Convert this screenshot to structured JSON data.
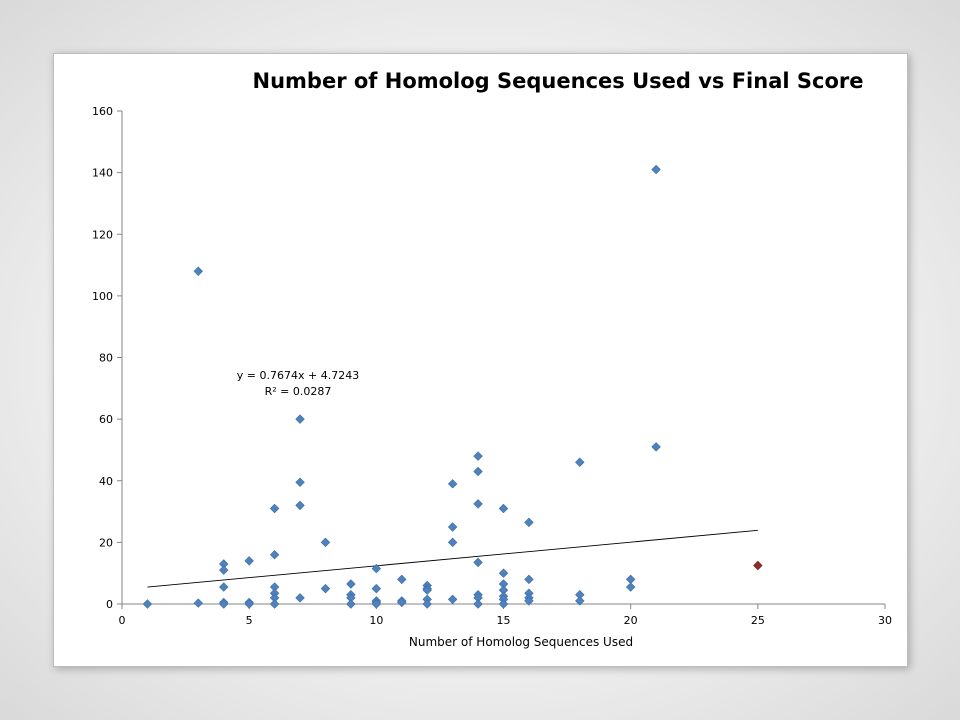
{
  "colors": {
    "point": "#4f81bd",
    "highlight_point": "#8b2b2b",
    "axis": "#868686",
    "trendline": "#000000"
  },
  "chart_data": {
    "type": "scatter",
    "title": "Number of Homolog Sequences Used vs Final Score",
    "xlabel": "Number of Homolog Sequences Used",
    "ylabel": "",
    "xlim": [
      0,
      30
    ],
    "ylim": [
      0,
      160
    ],
    "xticks": [
      "0",
      "5",
      "10",
      "15",
      "20",
      "25",
      "30"
    ],
    "yticks": [
      "0",
      "20",
      "40",
      "60",
      "80",
      "100",
      "120",
      "140",
      "160"
    ],
    "grid": false,
    "legend": "none",
    "trendline": {
      "equation": "y = 0.7674x + 4.7243",
      "r_squared": "R² = 0.0287",
      "slope": 0.7674,
      "intercept": 4.7243,
      "x_range": [
        1,
        25
      ]
    },
    "series": [
      {
        "points": [
          [
            1,
            0
          ],
          [
            3,
            108
          ],
          [
            3,
            0.3
          ],
          [
            4,
            13
          ],
          [
            4,
            11
          ],
          [
            4,
            5.5
          ],
          [
            4,
            0.5
          ],
          [
            4,
            0
          ],
          [
            5,
            14
          ],
          [
            5,
            0.5
          ],
          [
            5,
            0
          ],
          [
            6,
            31
          ],
          [
            6,
            16
          ],
          [
            6,
            5.5
          ],
          [
            6,
            3.5
          ],
          [
            6,
            2
          ],
          [
            6,
            0
          ],
          [
            7,
            60
          ],
          [
            7,
            39.5
          ],
          [
            7,
            32
          ],
          [
            7,
            2
          ],
          [
            8,
            20
          ],
          [
            8,
            5
          ],
          [
            9,
            6.5
          ],
          [
            9,
            3
          ],
          [
            9,
            2
          ],
          [
            9,
            0
          ],
          [
            10,
            11.5
          ],
          [
            10,
            5
          ],
          [
            10,
            1
          ],
          [
            10,
            0.5
          ],
          [
            10,
            0
          ],
          [
            11,
            8
          ],
          [
            11,
            1
          ],
          [
            11,
            0.5
          ],
          [
            12,
            6
          ],
          [
            12,
            5
          ],
          [
            12,
            4.5
          ],
          [
            12,
            1.5
          ],
          [
            12,
            0
          ],
          [
            13,
            39
          ],
          [
            13,
            25
          ],
          [
            13,
            20
          ],
          [
            13,
            1.5
          ],
          [
            14,
            48
          ],
          [
            14,
            43
          ],
          [
            14,
            32.5
          ],
          [
            14,
            13.5
          ],
          [
            14,
            3
          ],
          [
            14,
            2
          ],
          [
            14,
            0
          ],
          [
            15,
            31
          ],
          [
            15,
            10
          ],
          [
            15,
            6.5
          ],
          [
            15,
            4.5
          ],
          [
            15,
            2.5
          ],
          [
            15,
            1.5
          ],
          [
            15,
            0
          ],
          [
            16,
            26.5
          ],
          [
            16,
            8
          ],
          [
            16,
            3.5
          ],
          [
            16,
            2
          ],
          [
            16,
            1
          ],
          [
            18,
            46
          ],
          [
            18,
            3
          ],
          [
            18,
            1
          ],
          [
            20,
            8
          ],
          [
            20,
            5.5
          ],
          [
            21,
            141
          ],
          [
            21,
            51
          ]
        ]
      },
      {
        "points": [
          [
            25,
            12.5
          ]
        ]
      }
    ]
  }
}
